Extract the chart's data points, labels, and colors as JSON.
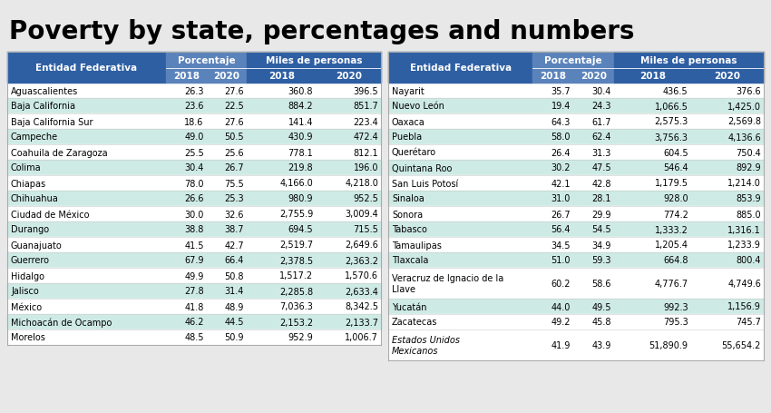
{
  "title": "Poverty by state, percentages and numbers",
  "left_states": [
    "Aguascalientes",
    "Baja California",
    "Baja California Sur",
    "Campeche",
    "Coahuila de Zaragoza",
    "Colima",
    "Chiapas",
    "Chihuahua",
    "Ciudad de México",
    "Durango",
    "Guanajuato",
    "Guerrero",
    "Hidalgo",
    "Jalisco",
    "México",
    "Michoacán de Ocampo",
    "Morelos"
  ],
  "left_pct_2018": [
    26.3,
    23.6,
    18.6,
    49.0,
    25.5,
    30.4,
    78.0,
    26.6,
    30.0,
    38.8,
    41.5,
    67.9,
    49.9,
    27.8,
    41.8,
    46.2,
    48.5
  ],
  "left_pct_2020": [
    27.6,
    22.5,
    27.6,
    50.5,
    25.6,
    26.7,
    75.5,
    25.3,
    32.6,
    38.7,
    42.7,
    66.4,
    50.8,
    31.4,
    48.9,
    44.5,
    50.9
  ],
  "left_miles_2018": [
    360.8,
    884.2,
    141.4,
    430.9,
    778.1,
    219.8,
    4166.0,
    980.9,
    2755.9,
    694.5,
    2519.7,
    2378.5,
    1517.2,
    2285.8,
    7036.3,
    2153.2,
    952.9
  ],
  "left_miles_2020": [
    396.5,
    851.7,
    223.4,
    472.4,
    812.1,
    196.0,
    4218.0,
    952.5,
    3009.4,
    715.5,
    2649.6,
    2363.2,
    1570.6,
    2633.4,
    8342.5,
    2133.7,
    1006.7
  ],
  "left_row_heights": [
    1,
    1,
    1,
    1,
    1,
    1,
    1,
    1,
    1,
    1,
    1,
    1,
    1,
    1,
    1,
    1,
    1
  ],
  "right_states": [
    "Nayarit",
    "Nuevo León",
    "Oaxaca",
    "Puebla",
    "Querétaro",
    "Quintana Roo",
    "San Luis Potosí",
    "Sinaloa",
    "Sonora",
    "Tabasco",
    "Tamaulipas",
    "Tlaxcala",
    "Veracruz de Ignacio de la\nLlave",
    "Yucatán",
    "Zacatecas",
    "Estados Unidos\nMexicanos"
  ],
  "right_pct_2018": [
    35.7,
    19.4,
    64.3,
    58.0,
    26.4,
    30.2,
    42.1,
    31.0,
    26.7,
    56.4,
    34.5,
    51.0,
    60.2,
    44.0,
    49.2,
    41.9
  ],
  "right_pct_2020": [
    30.4,
    24.3,
    61.7,
    62.4,
    31.3,
    47.5,
    42.8,
    28.1,
    29.9,
    54.5,
    34.9,
    59.3,
    58.6,
    49.5,
    45.8,
    43.9
  ],
  "right_miles_2018": [
    436.5,
    1066.5,
    2575.3,
    3756.3,
    604.5,
    546.4,
    1179.5,
    928.0,
    774.2,
    1333.2,
    1205.4,
    664.8,
    4776.7,
    992.3,
    795.3,
    51890.9
  ],
  "right_miles_2020": [
    376.6,
    1425.0,
    2569.8,
    4136.6,
    750.4,
    892.9,
    1214.0,
    853.9,
    885.0,
    1316.1,
    1233.9,
    800.4,
    4749.6,
    1156.9,
    745.7,
    55654.2
  ],
  "right_row_heights": [
    1,
    1,
    1,
    1,
    1,
    1,
    1,
    1,
    1,
    1,
    1,
    1,
    2,
    1,
    1,
    2
  ],
  "header_bg": "#2e5fa3",
  "header_text": "#ffffff",
  "subheader_bg": "#5b83bb",
  "row_alt_bg": "#ceeae4",
  "row_bg": "#ffffff",
  "sep_color": "#aaaaaa",
  "title_color": "#000000",
  "bg_color": "#e8e8e8"
}
